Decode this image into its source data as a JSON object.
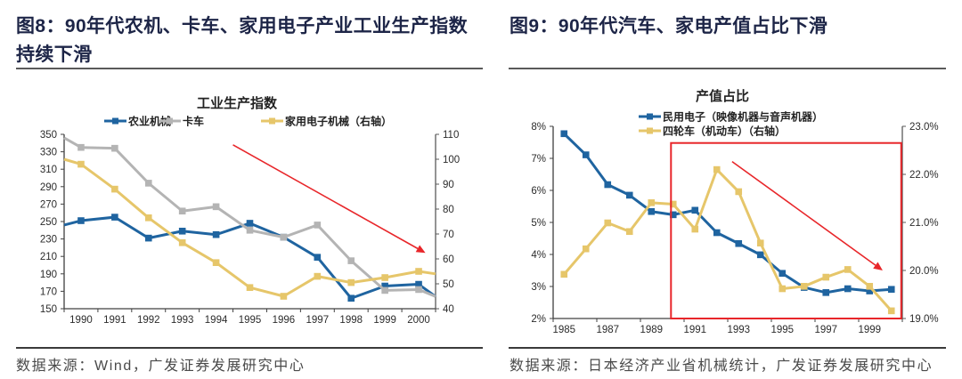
{
  "panels": [
    {
      "figure_title_line1": "图8：90年代农机、卡车、家用电子产业工业生产指数",
      "figure_title_line2": "持续下滑",
      "source": "数据来源：Wind，广发证券发展研究中心"
    },
    {
      "figure_title_line1": "图9：90年代汽车、家电产值占比下滑",
      "source": "数据来源：日本经济产业省机械统计，广发证券发展研究中心"
    }
  ],
  "colors": {
    "title": "#1d2547",
    "blue_series": "#1f64a0",
    "gray_series": "#b4b4b4",
    "yellow_series": "#e6c66a",
    "annotation_red": "#e8262a",
    "axis": "#404040"
  },
  "chart_data": [
    {
      "type": "line",
      "title": "工业生产指数",
      "xlabel": "",
      "ylabel": "",
      "categories": [
        "1990",
        "1991",
        "1992",
        "1993",
        "1994",
        "1995",
        "1996",
        "1997",
        "1998",
        "1999",
        "2000"
      ],
      "x_tick_labels": [
        "1990",
        "1991",
        "1992",
        "1993",
        "1994",
        "1995",
        "1996",
        "1997",
        "1998",
        "1999",
        "2000"
      ],
      "y_left": {
        "range": [
          150,
          350
        ],
        "tick_labels": [
          "350",
          "330",
          "310",
          "290",
          "270",
          "250",
          "230",
          "210",
          "190",
          "170",
          "150"
        ]
      },
      "y_right": {
        "range": [
          40,
          110
        ],
        "tick_labels": [
          "110",
          "100",
          "90",
          "80",
          "70",
          "60",
          "50",
          "40"
        ]
      },
      "grid": false,
      "legend_position": "top",
      "series": [
        {
          "name": "农业机械",
          "legend_label": "农业机械",
          "axis": "left",
          "color": "#1f64a0",
          "start_value": 246,
          "values": [
            251,
            255,
            231,
            239,
            235,
            248,
            232,
            209,
            162,
            176,
            178
          ],
          "end_value": 164
        },
        {
          "name": "卡车",
          "legend_label": "卡车",
          "axis": "left",
          "color": "#b4b4b4",
          "start_value": 346,
          "values": [
            335,
            334,
            294,
            262,
            267,
            240,
            232,
            246,
            205,
            171,
            172
          ],
          "end_value": 164
        },
        {
          "name": "家用电子机械",
          "legend_label": "家用电子机械（右轴）",
          "axis": "right",
          "color": "#e6c66a",
          "start_value": 100,
          "values": [
            98,
            88,
            76.5,
            66.5,
            58.5,
            48.5,
            45,
            53,
            50.5,
            52.5,
            55
          ],
          "end_value": 54
        }
      ],
      "annotations": [
        {
          "type": "arrow",
          "meaning": "downtrend",
          "color": "#e8262a",
          "axis": "left",
          "from": [
            1994.5,
            338
          ],
          "to": [
            2000.2,
            214
          ]
        }
      ]
    },
    {
      "type": "line",
      "title": "产值占比",
      "xlabel": "",
      "ylabel": "",
      "categories": [
        "1985",
        "1986",
        "1987",
        "1988",
        "1989",
        "1990",
        "1991",
        "1992",
        "1993",
        "1994",
        "1995",
        "1996",
        "1997",
        "1998",
        "1999",
        "2000"
      ],
      "x_tick_labels": [
        "1985",
        "1987",
        "1989",
        "1991",
        "1993",
        "1995",
        "1997",
        "1999"
      ],
      "y_left": {
        "range": [
          2,
          8
        ],
        "unit": "%",
        "tick_labels": [
          "8%",
          "7%",
          "6%",
          "5%",
          "4%",
          "3%",
          "2%"
        ]
      },
      "y_right": {
        "range": [
          19,
          23
        ],
        "unit": "%",
        "tick_labels": [
          "23.0%",
          "22.0%",
          "21.0%",
          "20.0%",
          "19.0%"
        ]
      },
      "grid": false,
      "legend_position": "top",
      "series": [
        {
          "name": "民用电子（映像机器与音声机器）",
          "legend_label": "民用电子（映像机器与音声机器）",
          "axis": "left",
          "color": "#1f64a0",
          "values": [
            7.77,
            7.11,
            6.18,
            5.85,
            5.34,
            5.24,
            5.38,
            4.68,
            4.34,
            3.99,
            3.41,
            2.97,
            2.81,
            2.93,
            2.86,
            2.91
          ]
        },
        {
          "name": "四轮车（机动车）",
          "legend_label": "四轮车（机动车）（右轴）",
          "axis": "right",
          "color": "#e6c66a",
          "values": [
            19.92,
            20.45,
            20.99,
            20.81,
            21.41,
            21.38,
            20.86,
            22.1,
            21.64,
            20.57,
            19.62,
            19.67,
            19.86,
            20.02,
            19.67,
            19.16
          ]
        }
      ],
      "annotations": [
        {
          "type": "highlight-box",
          "color": "#e8262a",
          "axis": "left",
          "x_range": [
            1989.9,
            2000.45
          ],
          "y_range": [
            2.0,
            7.48
          ]
        },
        {
          "type": "arrow",
          "meaning": "downtrend",
          "color": "#e8262a",
          "axis": "left",
          "from": [
            1992.7,
            6.9
          ],
          "to": [
            1999.6,
            3.5
          ]
        }
      ]
    }
  ]
}
